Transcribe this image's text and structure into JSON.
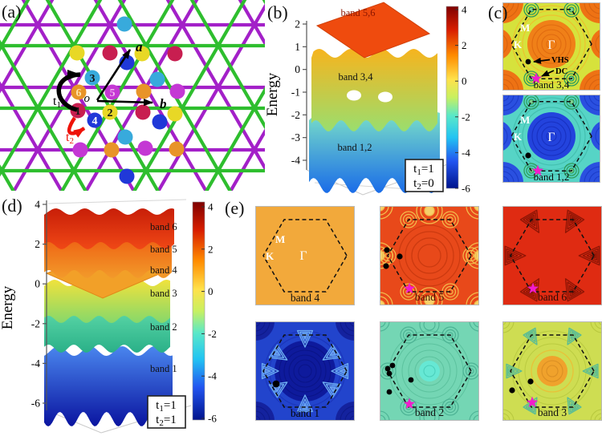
{
  "figure": {
    "panel_labels": {
      "a": "(a)",
      "b": "(b)",
      "c": "(c)",
      "d": "(d)",
      "e": "(e)"
    }
  },
  "colors": {
    "lattice_green": "#2ebe2e",
    "lattice_purple": "#a320c8",
    "site_colors": [
      "#c81e50",
      "#e8d826",
      "#38aadc",
      "#2038d8",
      "#c438d4",
      "#e89428"
    ],
    "flat_band": "#ef4b0e",
    "star_marker": "#f21ccc",
    "hopping_t2_arrow": "#ee1208"
  },
  "lattice": {
    "sites": [
      {
        "num": "1"
      },
      {
        "num": "2"
      },
      {
        "num": "3"
      },
      {
        "num": "4"
      },
      {
        "num": "5"
      },
      {
        "num": "6"
      }
    ],
    "origin_label": "o",
    "vector_a_label": "a",
    "vector_b_label": "b",
    "t1": {
      "sym": "t",
      "sub": "1"
    },
    "t2": {
      "sym": "t",
      "sub": "2"
    }
  },
  "panel_b": {
    "ylabel": "Energy",
    "yticks": [
      "2",
      "1",
      "0",
      "-1",
      "-2",
      "-3",
      "-4"
    ],
    "bands": {
      "top": "band 5,6",
      "mid": "band 3,4",
      "bot": "band 1,2"
    },
    "box": {
      "l1": {
        "sym": "t",
        "sub": "1",
        "eq": "=1"
      },
      "l2": {
        "sym": "t",
        "sub": "2",
        "eq": "=0"
      }
    },
    "colorbar_ticks": [
      "4",
      "2",
      "0",
      "-2",
      "-4",
      "-6"
    ]
  },
  "panel_c": {
    "top": {
      "name": "band 3,4",
      "m": "M",
      "k": "K",
      "gamma": "Γ",
      "vhs": "VHS",
      "dc": "DC"
    },
    "bottom": {
      "name": "band 1,2",
      "m": "M",
      "k": "K",
      "gamma": "Γ"
    }
  },
  "panel_d": {
    "ylabel": "Energy",
    "yticks": [
      "4",
      "2",
      "0",
      "-2",
      "-4",
      "-6"
    ],
    "band_labels": [
      "band 6",
      "band 5",
      "band 4",
      "band 3",
      "band 2",
      "band 1"
    ],
    "box": {
      "l1": {
        "sym": "t",
        "sub": "1",
        "eq": "=1"
      },
      "l2": {
        "sym": "t",
        "sub": "2",
        "eq": "=1"
      }
    },
    "colorbar_ticks": [
      "4",
      "2",
      "0",
      "-2",
      "-4",
      "-6"
    ]
  },
  "panel_e": {
    "band4": {
      "name": "band 4",
      "m": "M",
      "k": "K",
      "gamma": "Γ"
    },
    "band5": {
      "name": "band 5"
    },
    "band6": {
      "name": "band 6"
    },
    "band1": {
      "name": "band 1"
    },
    "band2": {
      "name": "band 2"
    },
    "band3": {
      "name": "band 3"
    }
  },
  "chart_data": [
    {
      "panel": "b",
      "type": "area",
      "subtype": "3d-band-surfaces",
      "zlabel": "Energy",
      "zticks": [
        2,
        1,
        0,
        -1,
        -2,
        -3,
        -4
      ],
      "zlim": [
        -4,
        2
      ],
      "series": [
        {
          "name": "band 5,6",
          "flat": true,
          "energy": 2
        },
        {
          "name": "band 3,4",
          "approx_range": [
            -1.5,
            1.5
          ]
        },
        {
          "name": "band 1,2",
          "approx_range": [
            -4,
            -1
          ]
        }
      ],
      "parameters": {
        "t1": 1,
        "t2": 0
      },
      "colorbar": {
        "ticks": [
          4,
          2,
          0,
          -2,
          -4,
          -6
        ],
        "colormap": "jet"
      }
    },
    {
      "panel": "c",
      "type": "heatmap",
      "subtype": "energy-contours-in-BZ",
      "plots": [
        {
          "name": "band 3,4",
          "bz_labels": [
            "M",
            "K",
            "Γ"
          ],
          "annotations": [
            "VHS",
            "DC"
          ],
          "markers": [
            "black-dot at VHS",
            "magenta-star at DC"
          ]
        },
        {
          "name": "band 1,2",
          "bz_labels": [
            "M",
            "K",
            "Γ"
          ],
          "markers": [
            "black-dot",
            "magenta-star"
          ]
        }
      ]
    },
    {
      "panel": "d",
      "type": "area",
      "subtype": "3d-band-surfaces",
      "zlabel": "Energy",
      "zticks": [
        4,
        2,
        0,
        -2,
        -4,
        -6
      ],
      "zlim": [
        -6,
        4
      ],
      "series": [
        {
          "name": "band 6",
          "approx_range": [
            2,
            3.8
          ]
        },
        {
          "name": "band 5",
          "approx_range": [
            1,
            2.5
          ]
        },
        {
          "name": "band 4",
          "flat": true,
          "energy": 1
        },
        {
          "name": "band 3",
          "approx_range": [
            -1,
            0.5
          ]
        },
        {
          "name": "band 2",
          "approx_range": [
            -2.5,
            -1.2
          ]
        },
        {
          "name": "band 1",
          "approx_range": [
            -6,
            -3.2
          ]
        }
      ],
      "parameters": {
        "t1": 1,
        "t2": 1
      },
      "colorbar": {
        "ticks": [
          4,
          2,
          0,
          -2,
          -4,
          -6
        ],
        "colormap": "jet"
      }
    },
    {
      "panel": "e",
      "type": "heatmap",
      "subtype": "energy-contours-in-BZ",
      "plots": [
        {
          "name": "band 4",
          "flat": true,
          "bz_labels": [
            "M",
            "K",
            "Γ"
          ]
        },
        {
          "name": "band 5",
          "markers": [
            "black-dots",
            "magenta-star"
          ]
        },
        {
          "name": "band 6",
          "markers": [
            "magenta-star"
          ]
        },
        {
          "name": "band 1",
          "markers": [
            "black-dot"
          ]
        },
        {
          "name": "band 2",
          "markers": [
            "black-dots",
            "magenta-star"
          ]
        },
        {
          "name": "band 3",
          "markers": [
            "black-dots",
            "magenta-star"
          ]
        }
      ]
    }
  ]
}
